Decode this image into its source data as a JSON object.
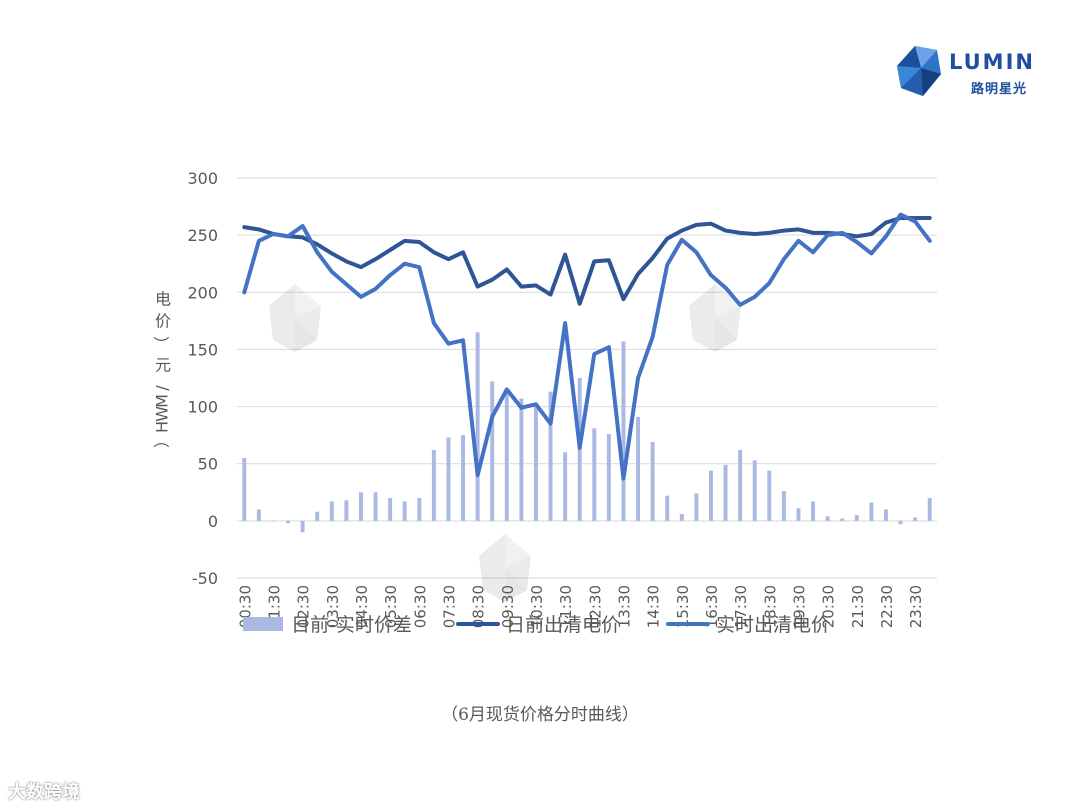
{
  "brand": {
    "name": "LUMIN",
    "sub": "路明星光",
    "color": "#1f4f9e"
  },
  "caption": "（6月现货价格分时曲线）",
  "footer_watermark": "大数跨境",
  "chart_data": {
    "type": "bar+line",
    "ylabel": "电价（元/MWH）",
    "ylim": [
      -50,
      300
    ],
    "yticks": [
      -50,
      0,
      50,
      100,
      150,
      200,
      250,
      300
    ],
    "grid": true,
    "legend_position": "bottom",
    "x_tick_labels": [
      "00:30",
      "01:30",
      "02:30",
      "03:30",
      "04:30",
      "05:30",
      "06:30",
      "07:30",
      "08:30",
      "09:30",
      "10:30",
      "11:30",
      "12:30",
      "13:30",
      "14:30",
      "15:30",
      "16:30",
      "17:30",
      "18:30",
      "19:30",
      "20:30",
      "21:30",
      "22:30",
      "23:30"
    ],
    "colors": {
      "bar": "#a9b9e3",
      "day_ahead": "#2f5597",
      "realtime": "#4472c4",
      "grid": "#d9d9d9",
      "text": "#595959"
    },
    "series": [
      {
        "name": "日前-实时价差",
        "kind": "bar",
        "values": [
          55,
          10,
          0,
          -2,
          -10,
          8,
          17,
          18,
          25,
          25,
          20,
          17,
          20,
          62,
          73,
          75,
          165,
          122,
          113,
          107,
          100,
          113,
          60,
          125,
          81,
          76,
          157,
          91,
          69,
          22,
          6,
          24,
          44,
          49,
          62,
          53,
          44,
          26,
          11,
          17,
          4,
          2,
          5,
          16,
          10,
          -3,
          3,
          20
        ]
      },
      {
        "name": "日前出清电价",
        "kind": "line",
        "values": [
          257,
          255,
          251,
          249,
          248,
          242,
          234,
          227,
          222,
          229,
          237,
          245,
          244,
          235,
          229,
          235,
          205,
          211,
          220,
          205,
          206,
          198,
          233,
          190,
          227,
          228,
          194,
          216,
          230,
          247,
          254,
          259,
          260,
          254,
          252,
          251,
          252,
          254,
          255,
          252,
          252,
          251,
          249,
          251,
          261,
          265,
          265,
          265
        ]
      },
      {
        "name": "实时出清电价",
        "kind": "line",
        "values": [
          200,
          245,
          251,
          249,
          258,
          235,
          218,
          207,
          196,
          203,
          215,
          225,
          222,
          173,
          155,
          158,
          40,
          91,
          115,
          99,
          102,
          85,
          173,
          64,
          146,
          152,
          37,
          125,
          161,
          224,
          246,
          235,
          215,
          204,
          189,
          196,
          208,
          229,
          245,
          235,
          250,
          252,
          244,
          234,
          249,
          268,
          262,
          245
        ]
      }
    ]
  }
}
